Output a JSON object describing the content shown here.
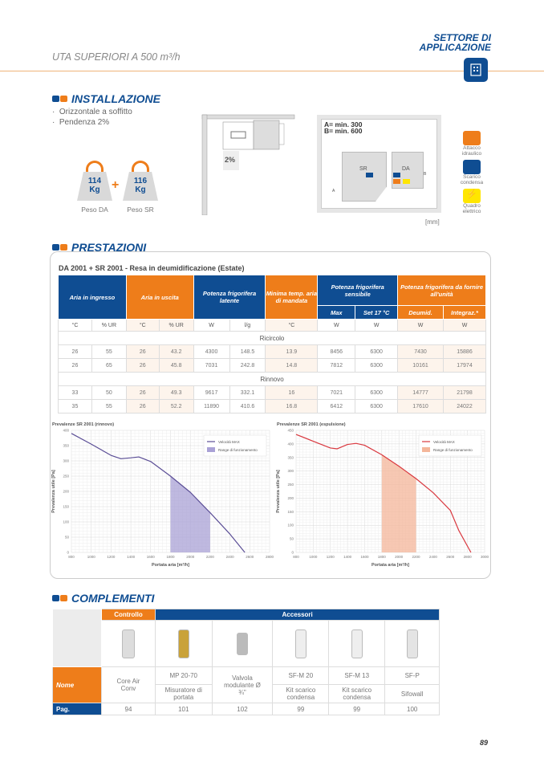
{
  "header": {
    "sector_line1": "SETTORE DI",
    "sector_line2": "APPLICAZIONE",
    "subtitle": "UTA SUPERIORI A 500 m³/h",
    "sector_icon": "building-icon"
  },
  "installazione": {
    "title": "INSTALLAZIONE",
    "bullets": [
      "Orizzontale a soffitto",
      "Pendenza 2%"
    ],
    "weights": [
      {
        "value": "114",
        "unit": "Kg",
        "label": "Peso DA"
      },
      {
        "value": "116",
        "unit": "Kg",
        "label": "Peso SR"
      }
    ],
    "slope": "2%",
    "clearance_a": "A= min. 300",
    "clearance_b": "B= min. 600",
    "unit_sr": "SR",
    "unit_da": "DA",
    "dim_a": "A",
    "dim_b": "B",
    "mm": "[mm]",
    "legend": [
      {
        "icon": "water-connection-icon",
        "label": "Attacco idraulico",
        "color": "#ee7d1a"
      },
      {
        "icon": "condensate-drain-icon",
        "label": "Scarico condensa",
        "color": "#0f4d92"
      },
      {
        "icon": "electric-panel-icon",
        "label": "Quadro elettrico",
        "color": "#ffe600"
      }
    ]
  },
  "prestazioni": {
    "title": "PRESTAZIONI",
    "table_title": "DA 2001 + SR 2001 - Resa in deumidificazione (Estate)",
    "headers": [
      "Aria in ingresso",
      "Aria in uscita",
      "Potenza frigorifera latente",
      "Minima temp. aria di mandata",
      "Potenza frigorifera sensibile",
      "Potenza frigorifera da fornire all'unità"
    ],
    "subheaders": [
      "Max",
      "Set 17 °C",
      "Deumid.",
      "Integraz.*"
    ],
    "units": [
      "°C",
      "% UR",
      "°C",
      "% UR",
      "W",
      "l/g",
      "°C",
      "W",
      "W",
      "W",
      "W"
    ],
    "groups": [
      {
        "name": "Ricircolo",
        "rows": [
          [
            "26",
            "55",
            "26",
            "43.2",
            "4300",
            "148.5",
            "13.9",
            "8456",
            "6300",
            "7430",
            "15886"
          ],
          [
            "26",
            "65",
            "26",
            "45.8",
            "7031",
            "242.8",
            "14.8",
            "7812",
            "6300",
            "10161",
            "17974"
          ]
        ]
      },
      {
        "name": "Rinnovo",
        "rows": [
          [
            "33",
            "50",
            "26",
            "49.3",
            "9617",
            "332.1",
            "16",
            "7021",
            "6300",
            "14777",
            "21798"
          ],
          [
            "35",
            "55",
            "26",
            "52.2",
            "11890",
            "410.6",
            "16.8",
            "6412",
            "6300",
            "17610",
            "24022"
          ]
        ]
      }
    ]
  },
  "chart_data": [
    {
      "type": "line",
      "title": "Prevalenze SR 2001 (rinnovo)",
      "xlabel": "Portata aria [m³/h]",
      "ylabel": "Prevalenza utile [Pa]",
      "xlim": [
        800,
        2800
      ],
      "ylim": [
        0,
        400
      ],
      "xticks": [
        800,
        1000,
        1200,
        1400,
        1600,
        1800,
        2000,
        2200,
        2400,
        2600,
        2800
      ],
      "yticks": [
        0,
        50,
        100,
        150,
        200,
        250,
        300,
        350,
        400
      ],
      "grid": true,
      "legend": "top-right",
      "color": "#5b4e96",
      "fill": "#a9a1d6",
      "series": [
        {
          "name": "Velocità MAX",
          "x": [
            800,
            1000,
            1200,
            1300,
            1400,
            1480,
            1600,
            1800,
            2000,
            2200,
            2400,
            2550
          ],
          "y": [
            390,
            355,
            318,
            307,
            310,
            313,
            298,
            250,
            197,
            130,
            60,
            0
          ]
        }
      ],
      "range": {
        "name": "Range di funzionamento",
        "x": [
          1800,
          2200
        ]
      }
    },
    {
      "type": "line",
      "title": "Prevalenze SR 2001 (espulsione)",
      "xlabel": "Portata aria [m³/h]",
      "ylabel": "Prevalenza utile [Pa]",
      "xlim": [
        800,
        3000
      ],
      "ylim": [
        0,
        450
      ],
      "xticks": [
        800,
        1000,
        1200,
        1400,
        1600,
        1800,
        2000,
        2200,
        2400,
        2600,
        2800,
        3000
      ],
      "yticks": [
        0,
        50,
        100,
        150,
        200,
        250,
        300,
        350,
        400,
        450
      ],
      "grid": true,
      "legend": "top-right",
      "color": "#d9383f",
      "fill": "#f4b69a",
      "series": [
        {
          "name": "Velocità MAX",
          "x": [
            800,
            1000,
            1200,
            1280,
            1400,
            1500,
            1600,
            1800,
            2000,
            2200,
            2400,
            2600,
            2700,
            2840
          ],
          "y": [
            435,
            410,
            385,
            382,
            398,
            402,
            395,
            360,
            318,
            272,
            220,
            155,
            80,
            0
          ]
        }
      ],
      "range": {
        "name": "Range di funzionamento",
        "x": [
          1800,
          2200
        ]
      }
    }
  ],
  "complementi": {
    "title": "COMPLEMENTI",
    "group_controllo": "Controllo",
    "group_accessori": "Accessori",
    "row_nome": "Nome",
    "row_pag": "Pag.",
    "items": [
      {
        "code": "Core Air Conv",
        "desc": "",
        "page": "94",
        "icon": "controller-icon"
      },
      {
        "code": "MP 20-70",
        "desc": "Misuratore di portata",
        "page": "101",
        "icon": "flow-meter-icon"
      },
      {
        "code": "Valvola modulante Ø ¾\"",
        "desc": "",
        "page": "102",
        "icon": "valve-icon"
      },
      {
        "code": "SF-M 20",
        "desc": "Kit scarico condensa",
        "page": "99",
        "icon": "drain-kit-icon"
      },
      {
        "code": "SF-M 13",
        "desc": "Kit scarico condensa",
        "page": "99",
        "icon": "drain-kit-icon"
      },
      {
        "code": "SF-P",
        "desc": "Sifowall",
        "page": "100",
        "icon": "siphon-icon"
      }
    ]
  },
  "page_number": "89",
  "colors": {
    "blue": "#0f4d92",
    "orange": "#ee7d1a"
  }
}
